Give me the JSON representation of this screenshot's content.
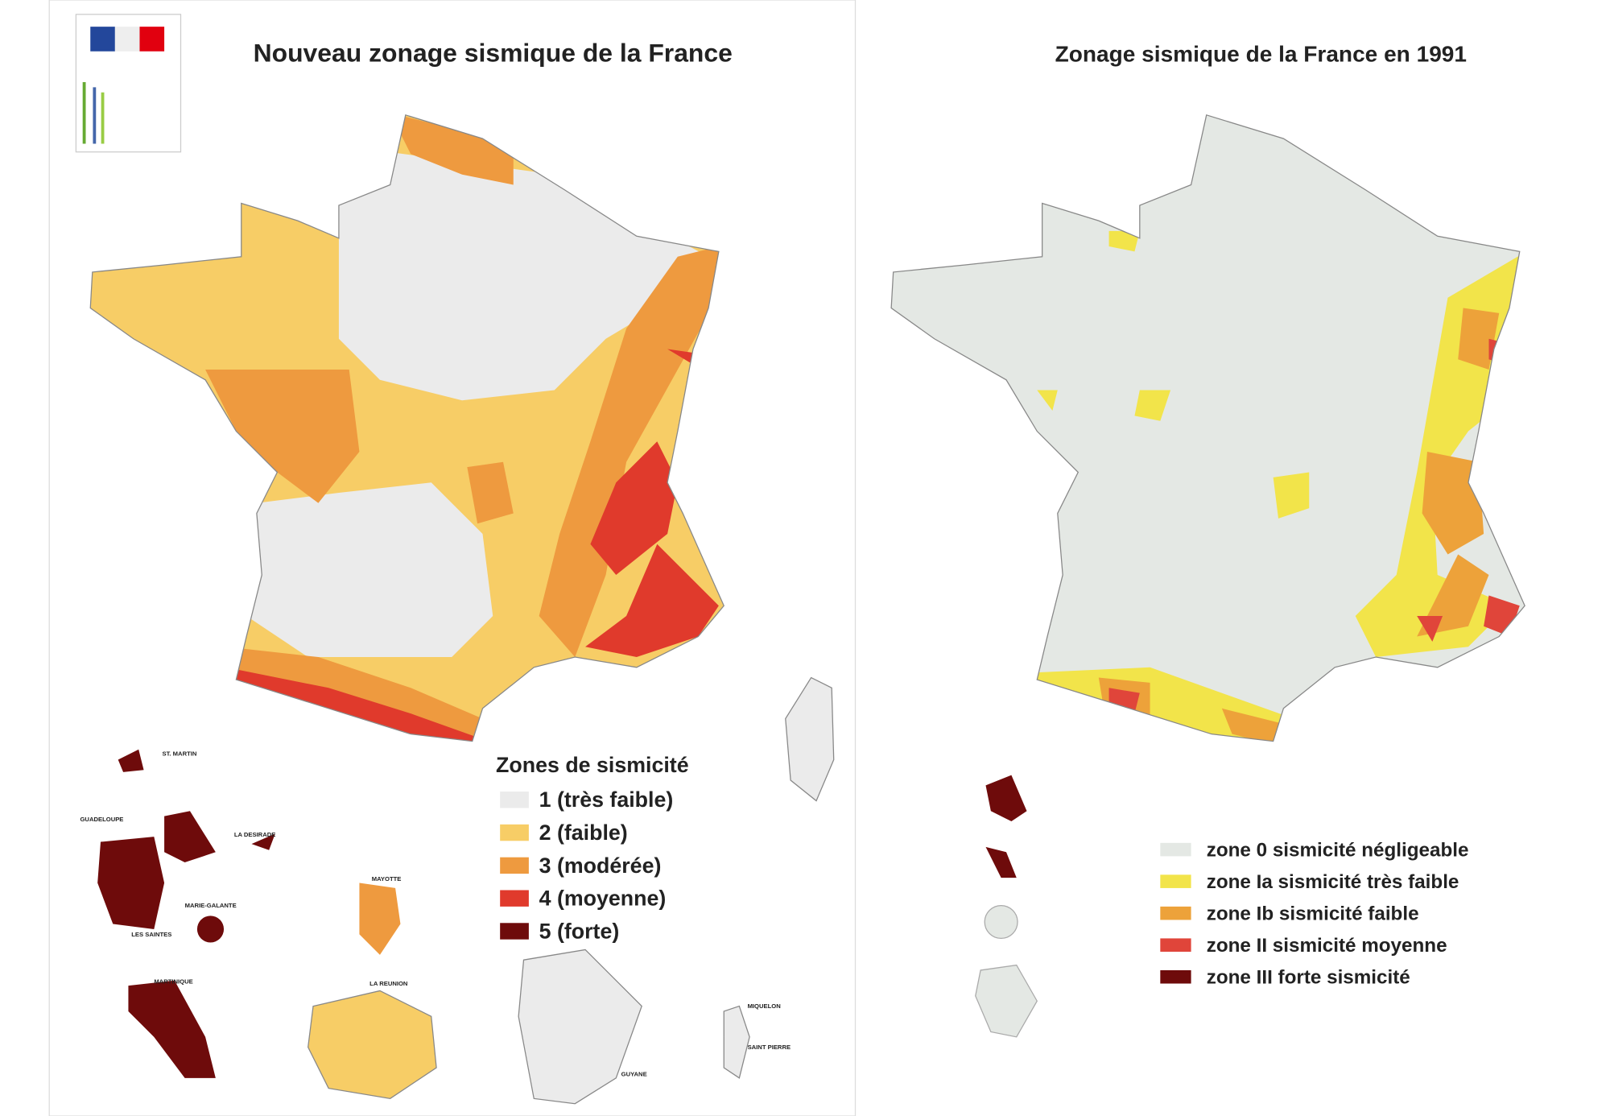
{
  "left_map": {
    "title": "Nouveau zonage sismique de la France",
    "legend": {
      "title": "Zones de sismicité",
      "items": [
        {
          "label": "1 (très faible)",
          "color": "#ebebeb"
        },
        {
          "label": "2 (faible)",
          "color": "#f7cd66"
        },
        {
          "label": "3 (modérée)",
          "color": "#ee9a3f"
        },
        {
          "label": "4 (moyenne)",
          "color": "#e03a2c"
        },
        {
          "label": "5 (forte)",
          "color": "#6e0b0b"
        }
      ]
    },
    "overseas": [
      "ST. MARTIN",
      "GUADELOUPE",
      "LA DESIRADE",
      "MARIE-GALANTE",
      "LES SAINTES",
      "MARTINIQUE",
      "MAYOTTE",
      "LA REUNION",
      "GUYANE",
      "MIQUELON",
      "SAINT PIERRE"
    ]
  },
  "right_map": {
    "title": "Zonage sismique de la France en 1991",
    "legend": {
      "items": [
        {
          "label": "zone 0  sismicité négligeable",
          "color": "#e4e8e4"
        },
        {
          "label": "zone Ia sismicité très faible",
          "color": "#f2e44a"
        },
        {
          "label": "zone Ib sismicité faible",
          "color": "#eda23a"
        },
        {
          "label": "zone II  sismicité moyenne",
          "color": "#e0453a"
        },
        {
          "label": "zone III forte sismicité",
          "color": "#6e0b0b"
        }
      ]
    }
  }
}
